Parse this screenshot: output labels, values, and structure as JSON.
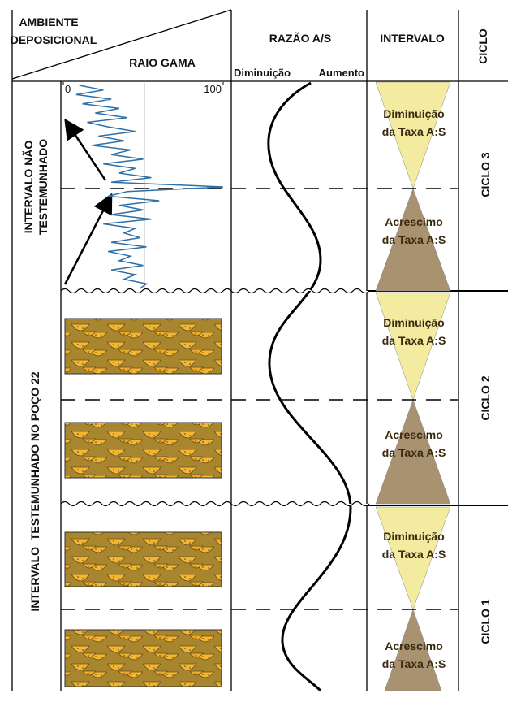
{
  "header": {
    "ambiente": [
      "AMBIENTE",
      "DEPOSICIONAL"
    ],
    "raio_gama": "RAIO GAMA",
    "razao": "RAZÃO A/S",
    "diminuicao": "Diminuição",
    "aumento": "Aumento",
    "intervalo": "INTERVALO",
    "ciclo": "CICLO"
  },
  "gamma_ray": {
    "type": "line",
    "xlim": [
      0,
      100
    ],
    "xticks": [
      0,
      100
    ],
    "values": [
      10,
      25,
      8,
      30,
      12,
      35,
      20,
      40,
      15,
      28,
      45,
      22,
      38,
      18,
      42,
      30,
      50,
      25,
      45,
      35,
      55,
      30,
      100,
      40,
      28,
      60,
      35,
      50,
      30,
      55,
      25,
      45,
      38,
      48,
      30,
      52,
      28,
      42,
      35,
      50,
      30,
      45,
      38,
      52,
      48
    ]
  },
  "left_labels": {
    "nao_testemunhado": [
      "INTERVALO NÃO",
      "TESTEMUNHADO"
    ],
    "testemunhado": "INTERVALO  TESTEMUNHADO NO POÇO 22"
  },
  "intervals": [
    {
      "lines": [
        "Diminuição",
        "da Taxa A:S"
      ]
    },
    {
      "lines": [
        "Acrescimo",
        "da Taxa A:S"
      ]
    },
    {
      "lines": [
        "Diminuição",
        "da Taxa A:S"
      ]
    },
    {
      "lines": [
        "Acrescimo",
        "da Taxa A:S"
      ]
    },
    {
      "lines": [
        "Diminuição",
        "da Taxa A:S"
      ]
    },
    {
      "lines": [
        "Acrescimo",
        "da Taxa A:S"
      ]
    }
  ],
  "cycles": [
    "CICLO 3",
    "CICLO 2",
    "CICLO 1"
  ]
}
